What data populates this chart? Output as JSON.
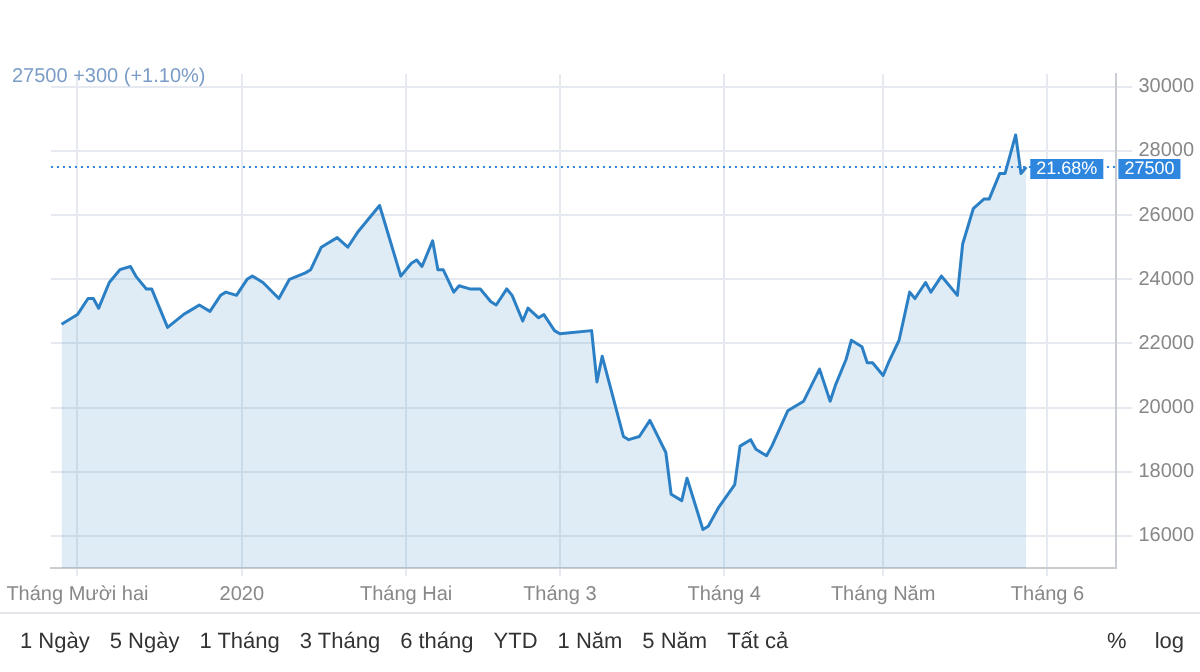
{
  "chart_data": {
    "type": "area",
    "x": [
      "2019-11-28",
      "2019-12-01",
      "2019-12-03",
      "2019-12-04",
      "2019-12-05",
      "2019-12-07",
      "2019-12-09",
      "2019-12-11",
      "2019-12-12",
      "2019-12-14",
      "2019-12-15",
      "2019-12-18",
      "2019-12-21",
      "2019-12-22",
      "2019-12-24",
      "2019-12-25",
      "2019-12-26",
      "2019-12-28",
      "2019-12-29",
      "2019-12-31",
      "2020-01-02",
      "2020-01-03",
      "2020-01-05",
      "2020-01-08",
      "2020-01-10",
      "2020-01-13",
      "2020-01-14",
      "2020-01-16",
      "2020-01-17",
      "2020-01-19",
      "2020-01-21",
      "2020-01-23",
      "2020-01-27",
      "2020-01-31",
      "2020-02-02",
      "2020-02-03",
      "2020-02-04",
      "2020-02-06",
      "2020-02-07",
      "2020-02-08",
      "2020-02-10",
      "2020-02-11",
      "2020-02-13",
      "2020-02-15",
      "2020-02-17",
      "2020-02-18",
      "2020-02-20",
      "2020-02-21",
      "2020-02-23",
      "2020-02-24",
      "2020-02-26",
      "2020-02-27",
      "2020-02-29",
      "2020-03-01",
      "2020-03-07",
      "2020-03-08",
      "2020-03-09",
      "2020-03-13",
      "2020-03-14",
      "2020-03-16",
      "2020-03-18",
      "2020-03-21",
      "2020-03-22",
      "2020-03-24",
      "2020-03-25",
      "2020-03-28",
      "2020-03-29",
      "2020-03-31",
      "2020-04-03",
      "2020-04-04",
      "2020-04-06",
      "2020-04-07",
      "2020-04-09",
      "2020-04-10",
      "2020-04-13",
      "2020-04-16",
      "2020-04-19",
      "2020-04-21",
      "2020-04-22",
      "2020-04-24",
      "2020-04-25",
      "2020-04-27",
      "2020-04-28",
      "2020-04-29",
      "2020-05-01",
      "2020-05-02",
      "2020-05-04",
      "2020-05-06",
      "2020-05-07",
      "2020-05-09",
      "2020-05-10",
      "2020-05-12",
      "2020-05-13",
      "2020-05-15",
      "2020-05-16",
      "2020-05-18",
      "2020-05-20",
      "2020-05-21",
      "2020-05-23",
      "2020-05-24",
      "2020-05-26",
      "2020-05-27",
      "2020-05-28"
    ],
    "series": [
      {
        "color": "#2b7fc4",
        "values": [
          22600,
          22900,
          23400,
          23400,
          23100,
          23900,
          24300,
          24400,
          24100,
          23700,
          23700,
          22500,
          22900,
          23000,
          23200,
          23100,
          23000,
          23500,
          23600,
          23500,
          24000,
          24100,
          23900,
          23400,
          24000,
          24200,
          24300,
          25000,
          25100,
          25300,
          25000,
          25500,
          26300,
          24100,
          24500,
          24600,
          24400,
          25200,
          24300,
          24300,
          23600,
          23800,
          23700,
          23700,
          23300,
          23200,
          23700,
          23500,
          22700,
          23100,
          22800,
          22900,
          22400,
          22300,
          22400,
          20800,
          21600,
          19100,
          19000,
          19100,
          19600,
          18600,
          17300,
          17100,
          17800,
          16200,
          16300,
          16900,
          17600,
          18800,
          19000,
          18700,
          18500,
          18800,
          19900,
          20200,
          21200,
          20200,
          20700,
          21500,
          22100,
          21900,
          21400,
          21400,
          21000,
          21400,
          22100,
          23600,
          23400,
          23900,
          23600,
          24100,
          23900,
          23500,
          25100,
          26200,
          26500,
          26500,
          27300,
          27300,
          28500,
          27300,
          27500
        ]
      }
    ],
    "xlim": [
      "2019-11-26",
      "2020-06-14"
    ],
    "xticks": [
      {
        "value": "2019-12-01",
        "label": "Tháng Mười hai"
      },
      {
        "value": "2020-01-01",
        "label": "2020"
      },
      {
        "value": "2020-02-01",
        "label": "Tháng Hai"
      },
      {
        "value": "2020-03-01",
        "label": "Tháng 3"
      },
      {
        "value": "2020-04-01",
        "label": "Tháng 4"
      },
      {
        "value": "2020-05-01",
        "label": "Tháng Năm"
      },
      {
        "value": "2020-06-01",
        "label": "Tháng 6"
      }
    ],
    "ylim": [
      15000,
      30400
    ],
    "yticks": [
      16000,
      18000,
      20000,
      22000,
      24000,
      26000,
      28000,
      30000
    ],
    "grid": true,
    "legend": false,
    "marker": "none",
    "line_style": "solid",
    "ref_lines": [
      {
        "axis": "y",
        "value": 27500,
        "label": "27500",
        "color": "#2f86de",
        "line_style": "dotted"
      }
    ],
    "annotations": [
      "27500 +300 (+1.10%)",
      {
        "text": "21.68%",
        "x": "2020-05-28",
        "y": 27500
      },
      "1 Ngày",
      "5 Ngày",
      "1 Tháng",
      "3 Tháng",
      "6 tháng",
      "YTD",
      "1 Năm",
      "5 Năm",
      "Tất cả",
      "%",
      "log"
    ]
  }
}
